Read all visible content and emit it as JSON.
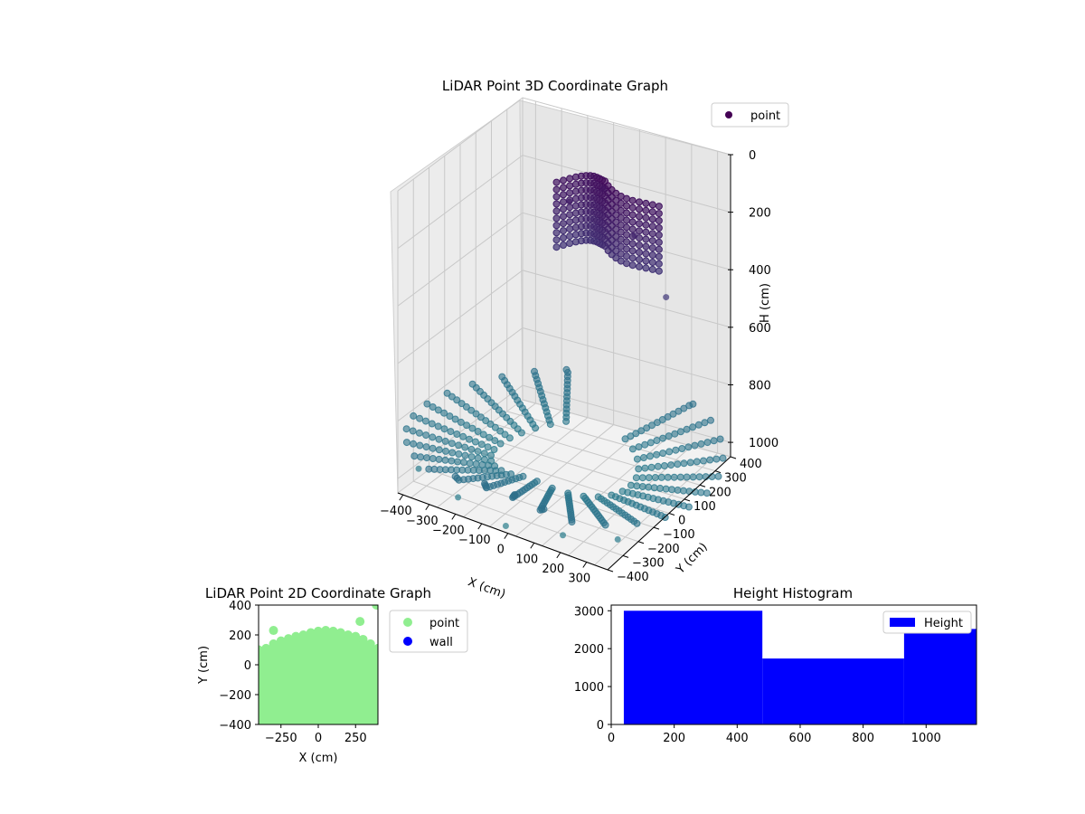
{
  "chart_data": [
    {
      "type": "scatter3d",
      "title": "LiDAR Point 3D Coordinate Graph",
      "xlabel": "X (cm)",
      "ylabel": "Y (cm)",
      "zlabel": "H (cm)",
      "xlim": [
        -400,
        400
      ],
      "ylim": [
        -400,
        400
      ],
      "zlim": [
        0,
        1050
      ],
      "z_inverted": true,
      "xticks": [
        "−400",
        "−300",
        "−200",
        "−100",
        "0",
        "100",
        "200",
        "300"
      ],
      "yticks": [
        "−400",
        "−300",
        "−200",
        "−100",
        "0",
        "100",
        "200",
        "300",
        "400"
      ],
      "zticks": [
        "0",
        "200",
        "400",
        "600",
        "800",
        "1000"
      ],
      "legend": {
        "placement": "upper-right",
        "entries": [
          {
            "label": "point",
            "color": "#440154"
          }
        ]
      },
      "colormap": "viridis",
      "series": [
        {
          "name": "point",
          "description_of_structure": [
            "curved bowl-shaped scan rings near H≈1000",
            "upper patch of points near H≈100–500"
          ],
          "sample_points": [
            {
              "x": -380,
              "y": -300,
              "h": 1000
            },
            {
              "x": -200,
              "y": -350,
              "h": 1020
            },
            {
              "x": 0,
              "y": -380,
              "h": 1040
            },
            {
              "x": 200,
              "y": -350,
              "h": 1020
            },
            {
              "x": 380,
              "y": -300,
              "h": 1000
            },
            {
              "x": -100,
              "y": 200,
              "h": 200
            },
            {
              "x": 0,
              "y": 250,
              "h": 150
            },
            {
              "x": 150,
              "y": 200,
              "h": 250
            },
            {
              "x": 300,
              "y": 150,
              "h": 400
            }
          ]
        }
      ],
      "grid": true
    },
    {
      "type": "scatter",
      "title": "LiDAR Point 2D Coordinate Graph",
      "xlabel": "X (cm)",
      "ylabel": "Y (cm)",
      "xlim": [
        -400,
        400
      ],
      "ylim": [
        -400,
        400
      ],
      "xticks": [
        "−250",
        "0",
        "250"
      ],
      "yticks": [
        "−400",
        "−200",
        "0",
        "200",
        "400"
      ],
      "legend": {
        "placement": "right-outside",
        "entries": [
          {
            "label": "point",
            "color": "#90ee90"
          },
          {
            "label": "wall",
            "color": "#0000ff"
          }
        ]
      },
      "series": [
        {
          "name": "point",
          "color": "#90ee90",
          "boundary_points": [
            [
              -400,
              100
            ],
            [
              -350,
              110
            ],
            [
              -300,
              140
            ],
            [
              -250,
              160
            ],
            [
              -200,
              175
            ],
            [
              -150,
              190
            ],
            [
              -100,
              200
            ],
            [
              -50,
              215
            ],
            [
              0,
              225
            ],
            [
              50,
              230
            ],
            [
              100,
              225
            ],
            [
              150,
              215
            ],
            [
              200,
              200
            ],
            [
              250,
              190
            ],
            [
              300,
              170
            ],
            [
              350,
              140
            ],
            [
              400,
              110
            ]
          ],
          "outliers": [
            [
              280,
              290
            ],
            [
              390,
              400
            ],
            [
              -300,
              230
            ]
          ]
        },
        {
          "name": "wall",
          "color": "#0000ff",
          "points": []
        }
      ],
      "grid": false
    },
    {
      "type": "bar",
      "title": "Height Histogram",
      "xlabel": "",
      "ylabel": "",
      "xlim": [
        0,
        1160
      ],
      "ylim": [
        0,
        3150
      ],
      "xticks": [
        "0",
        "200",
        "400",
        "600",
        "800",
        "1000"
      ],
      "yticks": [
        "0",
        "1000",
        "2000",
        "3000"
      ],
      "legend": {
        "placement": "upper-right",
        "entries": [
          {
            "label": "Height",
            "color": "#0000ff"
          }
        ]
      },
      "series": [
        {
          "name": "Height",
          "color": "#0000ff",
          "bins": [
            {
              "from": 40,
              "to": 480,
              "count": 3000
            },
            {
              "from": 480,
              "to": 930,
              "count": 1740
            },
            {
              "from": 930,
              "to": 1160,
              "count": 2520
            }
          ]
        }
      ],
      "grid": false
    }
  ]
}
